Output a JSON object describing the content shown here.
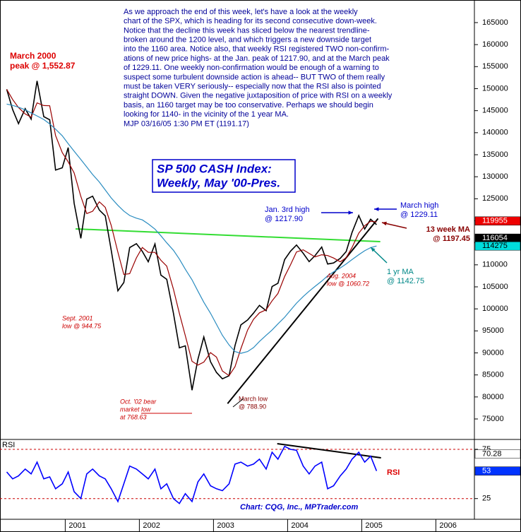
{
  "chart_data": [
    {
      "type": "line",
      "title": [
        "SP 500 CASH Index:",
        "Weekly, May '00-Pres."
      ],
      "commentary": [
        "As we approach the end of this week, let's have a look at the weekly",
        "chart of the SPX, which is heading for its second consecutive down-week.",
        "Notice that the decline this week has sliced below the nearest trendline-",
        "broken around the 1200 level, and which triggers a new downside target",
        "into the 1160 area. Notice also, that weekly RSI registered TWO non-confirm-",
        "ations of new price highs- at the Jan. peak of 1217.90, and at the March peak",
        "of 1229.11. One weekly non-confirmation would be enough of a warning to",
        "suspect some turbulent downside action is ahead-- BUT TWO of them really",
        "must be taken VERY seriously-- especially now that the RSI also is pointed",
        "straight DOWN. Given the negative juxtaposition of price with RSI on a weekly",
        "basis, an 1160 target may be too conservative. Perhaps we should begin",
        "looking for 1140- in the vicinity of the 1 year MA.",
        "MJP 03/16/05 1:30 PM ET (1191.17)"
      ],
      "annotations": [
        {
          "lines": [
            "March 2000",
            "peak @ 1,552.87"
          ],
          "color": "#dd0000"
        },
        {
          "lines": [
            "Jan. 3rd high",
            "@ 1217.90"
          ],
          "color": "#0000cc"
        },
        {
          "lines": [
            "March high",
            "@ 1229.11"
          ],
          "color": "#0000cc"
        },
        {
          "lines": [
            "13 week MA",
            "@ 1197.45"
          ],
          "color": "#880000"
        },
        {
          "lines": [
            "1 yr MA",
            "@ 1142.75"
          ],
          "color": "#008888"
        },
        {
          "lines": [
            "Sept. 2001",
            "low @ 944.75"
          ],
          "color": "#cc0000"
        },
        {
          "lines": [
            "Aug. 2004",
            "low @ 1060.72"
          ],
          "color": "#cc0000"
        },
        {
          "lines": [
            "Oct. '02 bear",
            "market low",
            "at 768.63"
          ],
          "color": "#cc0000"
        },
        {
          "lines": [
            "March low",
            "@ 788.90"
          ],
          "color": "#880000"
        }
      ],
      "source": "Chart: CQG, Inc., MPTrader.com",
      "x": [
        2000.21,
        2000.29,
        2000.37,
        2000.46,
        2000.54,
        2000.62,
        2000.71,
        2000.79,
        2000.87,
        2000.96,
        2001.04,
        2001.12,
        2001.21,
        2001.29,
        2001.37,
        2001.46,
        2001.54,
        2001.62,
        2001.71,
        2001.79,
        2001.87,
        2001.96,
        2002.04,
        2002.12,
        2002.21,
        2002.29,
        2002.37,
        2002.46,
        2002.54,
        2002.62,
        2002.71,
        2002.79,
        2002.87,
        2002.96,
        2003.04,
        2003.12,
        2003.21,
        2003.29,
        2003.37,
        2003.46,
        2003.54,
        2003.62,
        2003.71,
        2003.79,
        2003.87,
        2003.96,
        2004.04,
        2004.12,
        2004.21,
        2004.29,
        2004.37,
        2004.46,
        2004.54,
        2004.62,
        2004.71,
        2004.79,
        2004.87,
        2004.96,
        2005.04,
        2005.12,
        2005.2
      ],
      "series": [
        {
          "color": "#000000",
          "values": [
            149850,
            145243,
            142060,
            145460,
            143083,
            151768,
            143651,
            142940,
            131523,
            132028,
            136617,
            123993,
            116008,
            124930,
            125577,
            122442,
            121123,
            113364,
            104094,
            105979,
            113920,
            114808,
            113056,
            110693,
            114739,
            107657,
            106702,
            98982,
            91162,
            91607,
            81529,
            88585,
            93616,
            87992,
            85570,
            84118,
            84818,
            91692,
            96359,
            97482,
            99031,
            100801,
            99597,
            105075,
            105808,
            111192,
            113110,
            114494,
            112621,
            110730,
            112067,
            114042,
            110188,
            110424,
            111458,
            113020,
            117367,
            121190,
            118127,
            120359,
            119117
          ]
        },
        {
          "color": "#990000",
          "values": [
            149850,
            147550,
            145720,
            144250,
            143540,
            146770,
            146170,
            146110,
            139360,
            135480,
            133380,
            130880,
            125540,
            121640,
            122170,
            124320,
            123050,
            118970,
            112860,
            107810,
            108000,
            111570,
            113930,
            112850,
            112830,
            111030,
            109700,
            104450,
            98950,
            93920,
            88100,
            87240,
            87910,
            90070,
            89060,
            85890,
            84840,
            86880,
            90960,
            95180,
            97620,
            99100,
            99810,
            101830,
            103500,
            107360,
            110040,
            112930,
            113410,
            112610,
            111810,
            112280,
            112100,
            111550,
            110690,
            111630,
            113950,
            117190,
            118900,
            119890,
            119745
          ]
        },
        {
          "color": "#2a8cc0",
          "values": [
            146500,
            146200,
            145800,
            145200,
            144500,
            143800,
            143000,
            142000,
            140800,
            139300,
            137500,
            135800,
            133900,
            132200,
            130500,
            128800,
            127000,
            125200,
            123500,
            122200,
            121200,
            120600,
            120200,
            119300,
            118100,
            116600,
            115000,
            113300,
            111300,
            109000,
            106600,
            104000,
            101500,
            99000,
            96500,
            94000,
            91800,
            90300,
            89900,
            90300,
            91200,
            92600,
            94000,
            95200,
            96600,
            98100,
            99700,
            101300,
            102800,
            104000,
            105100,
            106300,
            107500,
            108400,
            109300,
            110200,
            111200,
            112300,
            113200,
            113900,
            114275
          ]
        }
      ],
      "trendlines": [
        {
          "x": [
            2001.14,
            2005.25
          ],
          "y": [
            118160,
            115270
          ],
          "color": "#33dd33"
        },
        {
          "x": [
            2003.19,
            2005.22
          ],
          "y": [
            78500,
            120500
          ],
          "color": "#000000"
        }
      ],
      "last_values": [
        {
          "value": 119955,
          "color": "#ee0000",
          "text_color": "#ffffff"
        },
        {
          "value": 116054,
          "color": "#000000",
          "text_color": "#ffffff"
        },
        {
          "value": 114275,
          "color": "#00dddd",
          "text_color": "#000000"
        }
      ],
      "xlim": [
        2000.12,
        2006.52
      ],
      "xticks": [
        2001,
        2002,
        2003,
        2004,
        2005,
        2006
      ],
      "ylim": [
        70350,
        170130
      ],
      "yticks": [
        75000,
        80000,
        85000,
        90000,
        95000,
        100000,
        105000,
        110000,
        115000,
        120000,
        125000,
        130000,
        135000,
        140000,
        145000,
        150000,
        155000,
        160000,
        165000
      ]
    },
    {
      "type": "line",
      "title": "RSI",
      "series": [
        {
          "name": "RSI",
          "color": "#0000ff",
          "values": [
            52,
            45,
            48,
            55,
            50,
            62,
            45,
            47,
            35,
            40,
            52,
            32,
            25,
            50,
            55,
            48,
            45,
            35,
            22,
            40,
            58,
            55,
            50,
            45,
            55,
            35,
            40,
            25,
            20,
            30,
            22,
            42,
            50,
            38,
            35,
            33,
            40,
            60,
            62,
            58,
            60,
            65,
            55,
            72,
            65,
            78,
            75,
            74,
            58,
            50,
            58,
            62,
            35,
            38,
            48,
            55,
            65,
            72,
            62,
            68,
            53
          ]
        }
      ],
      "trendlines": [
        {
          "x": [
            2003.86,
            2005.26
          ],
          "y": [
            80.7,
            66.4
          ],
          "color": "#000000"
        }
      ],
      "last_values": [
        {
          "value": 70.28,
          "color": "#ffffff",
          "text_color": "#000000"
        },
        {
          "value": 53,
          "color": "#0033ff",
          "text_color": "#ffffff"
        }
      ],
      "ylim": [
        4,
        85
      ],
      "yticks": [
        25,
        75
      ],
      "grid": true
    }
  ]
}
